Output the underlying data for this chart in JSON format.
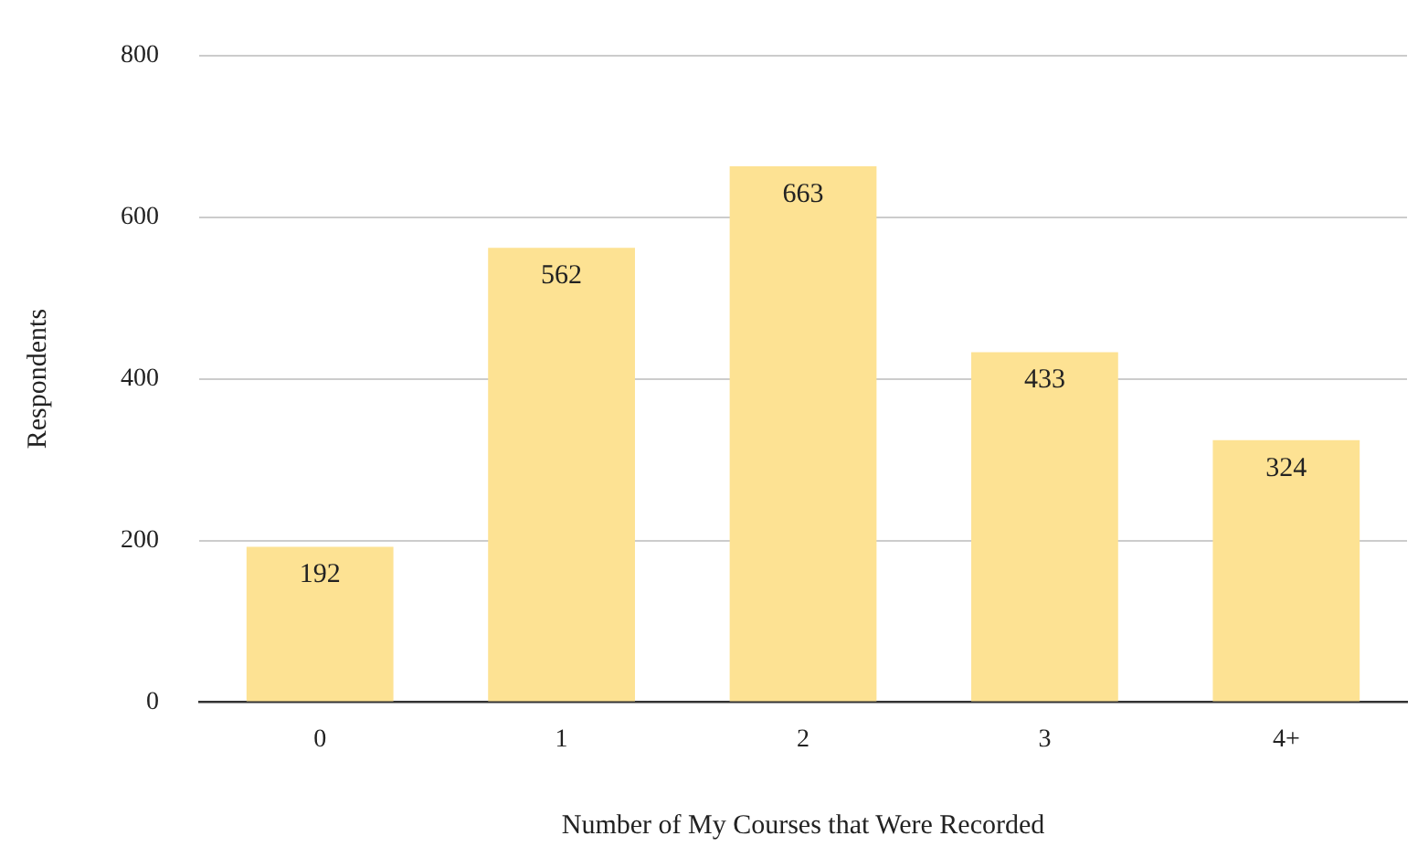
{
  "chart_data": {
    "type": "bar",
    "xlabel": "Number of My Courses that Were Recorded",
    "ylabel": "Respondents",
    "categories": [
      "0",
      "1",
      "2",
      "3",
      "4+"
    ],
    "values": [
      192,
      562,
      663,
      433,
      324
    ],
    "color": "#fde293",
    "ylim": [
      0,
      800
    ],
    "yticks": [
      0,
      200,
      400,
      600,
      800
    ],
    "grid": "y",
    "data_labels": true,
    "legend": false
  }
}
